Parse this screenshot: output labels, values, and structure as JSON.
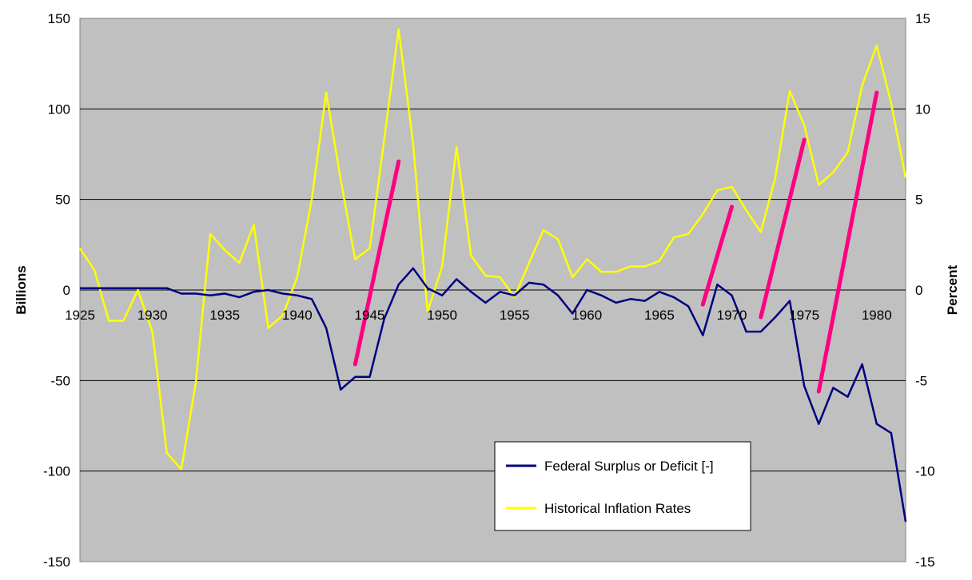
{
  "chart_data": {
    "type": "line",
    "title": "",
    "y_left_label": "Billions",
    "y_right_label": "Percent",
    "y_left_lim": [
      -150,
      150
    ],
    "y_right_lim": [
      -15,
      15
    ],
    "y_left_ticks": [
      150,
      100,
      50,
      0,
      -50,
      -100,
      -150
    ],
    "y_right_ticks": [
      15,
      10,
      5,
      0,
      -5,
      -10,
      -15
    ],
    "x_lim": [
      1925,
      1982
    ],
    "x_ticks": [
      1925,
      1930,
      1935,
      1940,
      1945,
      1950,
      1955,
      1960,
      1965,
      1970,
      1975,
      1980
    ],
    "grid": "horizontal",
    "legend_position": "lower-right",
    "background": "#c0c0c0",
    "series": [
      {
        "name": "Federal Surplus or Deficit [-]",
        "axis": "left",
        "color": "#000080",
        "x": [
          1925,
          1926,
          1927,
          1928,
          1929,
          1930,
          1931,
          1932,
          1933,
          1934,
          1935,
          1936,
          1937,
          1938,
          1939,
          1940,
          1941,
          1942,
          1943,
          1944,
          1945,
          1946,
          1947,
          1948,
          1949,
          1950,
          1951,
          1952,
          1953,
          1954,
          1955,
          1956,
          1957,
          1958,
          1959,
          1960,
          1961,
          1962,
          1963,
          1964,
          1965,
          1966,
          1967,
          1968,
          1969,
          1970,
          1971,
          1972,
          1973,
          1974,
          1975,
          1976,
          1977,
          1978,
          1979,
          1980,
          1981,
          1982
        ],
        "values": [
          1,
          1,
          1,
          1,
          1,
          1,
          1,
          -2,
          -2,
          -3,
          -2,
          -4,
          -1,
          0,
          -2,
          -3,
          -5,
          -21,
          -55,
          -48,
          -48,
          -16,
          3,
          12,
          1,
          -3,
          6,
          -1,
          -7,
          -1,
          -3,
          4,
          3,
          -3,
          -13,
          0,
          -3,
          -7,
          -5,
          -6,
          -1,
          -4,
          -9,
          -25,
          3,
          -3,
          -23,
          -23,
          -15,
          -6,
          -53,
          -74,
          -54,
          -59,
          -41,
          -74,
          -79,
          -128
        ]
      },
      {
        "name": "Historical Inflation Rates",
        "axis": "right",
        "color": "#ffff00",
        "x": [
          1925,
          1926,
          1927,
          1928,
          1929,
          1930,
          1931,
          1932,
          1933,
          1934,
          1935,
          1936,
          1937,
          1938,
          1939,
          1940,
          1941,
          1942,
          1943,
          1944,
          1945,
          1946,
          1947,
          1948,
          1949,
          1950,
          1951,
          1952,
          1953,
          1954,
          1955,
          1956,
          1957,
          1958,
          1959,
          1960,
          1961,
          1962,
          1963,
          1964,
          1965,
          1966,
          1967,
          1968,
          1969,
          1970,
          1971,
          1972,
          1973,
          1974,
          1975,
          1976,
          1977,
          1978,
          1979,
          1980,
          1981,
          1982
        ],
        "values": [
          2.3,
          1.1,
          -1.7,
          -1.7,
          0,
          -2.3,
          -9,
          -9.9,
          -5.1,
          3.1,
          2.2,
          1.5,
          3.6,
          -2.1,
          -1.4,
          0.7,
          5,
          10.9,
          6.1,
          1.7,
          2.3,
          8.3,
          14.4,
          8.1,
          -1.2,
          1.3,
          7.9,
          1.9,
          0.8,
          0.7,
          -0.4,
          1.5,
          3.3,
          2.8,
          0.7,
          1.7,
          1,
          1,
          1.3,
          1.3,
          1.6,
          2.9,
          3.1,
          4.2,
          5.5,
          5.7,
          4.4,
          3.2,
          6.2,
          11,
          9.1,
          5.8,
          6.5,
          7.6,
          11.3,
          13.5,
          10.3,
          6.2
        ]
      }
    ],
    "annotations": [
      {
        "color": "#ff0080",
        "x1": 1944,
        "y1": -41,
        "x2": 1947,
        "y2": 71
      },
      {
        "color": "#ff0080",
        "x1": 1968,
        "y1": -8,
        "x2": 1970,
        "y2": 46
      },
      {
        "color": "#ff0080",
        "x1": 1972,
        "y1": -15,
        "x2": 1975,
        "y2": 83
      },
      {
        "color": "#ff0080",
        "x1": 1976,
        "y1": -56,
        "x2": 1980,
        "y2": 109
      }
    ]
  }
}
